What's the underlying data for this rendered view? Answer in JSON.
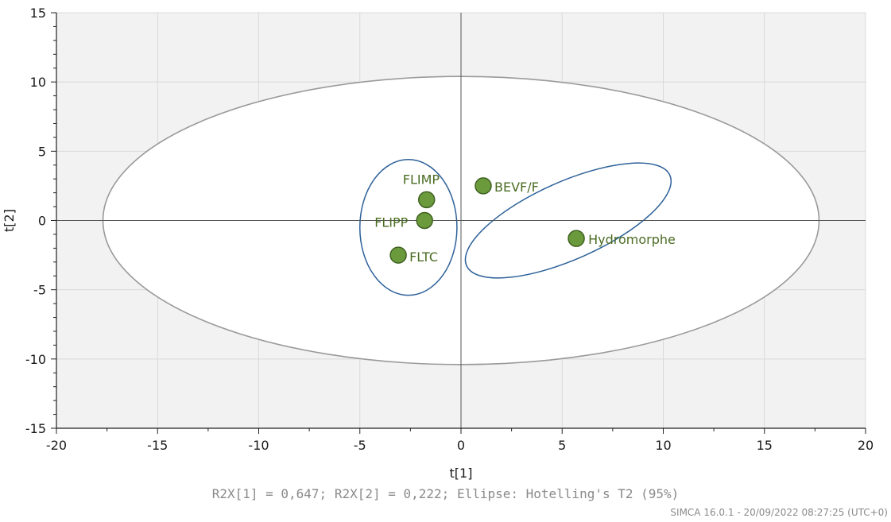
{
  "chart_data": {
    "type": "scatter",
    "xlabel": "t[1]",
    "ylabel": "t[2]",
    "xlim": [
      -20,
      20
    ],
    "ylim": [
      -15,
      15
    ],
    "xticks": [
      -20,
      -15,
      -10,
      -5,
      0,
      5,
      10,
      15,
      20
    ],
    "yticks": [
      15,
      10,
      5,
      0,
      -5,
      -10,
      -15
    ],
    "grid": true,
    "points": [
      {
        "label": "FLIMP",
        "x": -1.7,
        "y": 1.5
      },
      {
        "label": "FLIPP",
        "x": -1.8,
        "y": 0.0
      },
      {
        "label": "FLTC",
        "x": -3.1,
        "y": -2.5
      },
      {
        "label": "BEVF/F",
        "x": 1.1,
        "y": 2.5
      },
      {
        "label": "Hydromorphe",
        "x": 5.7,
        "y": -1.3
      }
    ],
    "hotelling_ellipse": {
      "cx": 0,
      "cy": 0,
      "rx": 17.7,
      "ry": 10.4
    },
    "group_ellipses": [
      {
        "cx": -2.6,
        "cy": -0.5,
        "rx": 2.4,
        "ry": 4.9,
        "angle": 0
      },
      {
        "cx": 5.3,
        "cy": 0.0,
        "rx": 5.5,
        "ry": 2.8,
        "angle": -24
      }
    ],
    "colors": {
      "point_fill": "#6b9a3c",
      "point_stroke": "#3f6121",
      "label": "#4a6b22",
      "group_ellipse": "#2d6199",
      "hotelling": "#9a9a9a",
      "grid": "#d9d9d9"
    }
  },
  "footer": {
    "stats": "R2X[1] = 0,647; R2X[2] = 0,222; Ellipse: Hotelling's T2 (95%)",
    "software": "SIMCA 16.0.1 - 20/09/2022 08:27:25 (UTC+0)"
  }
}
